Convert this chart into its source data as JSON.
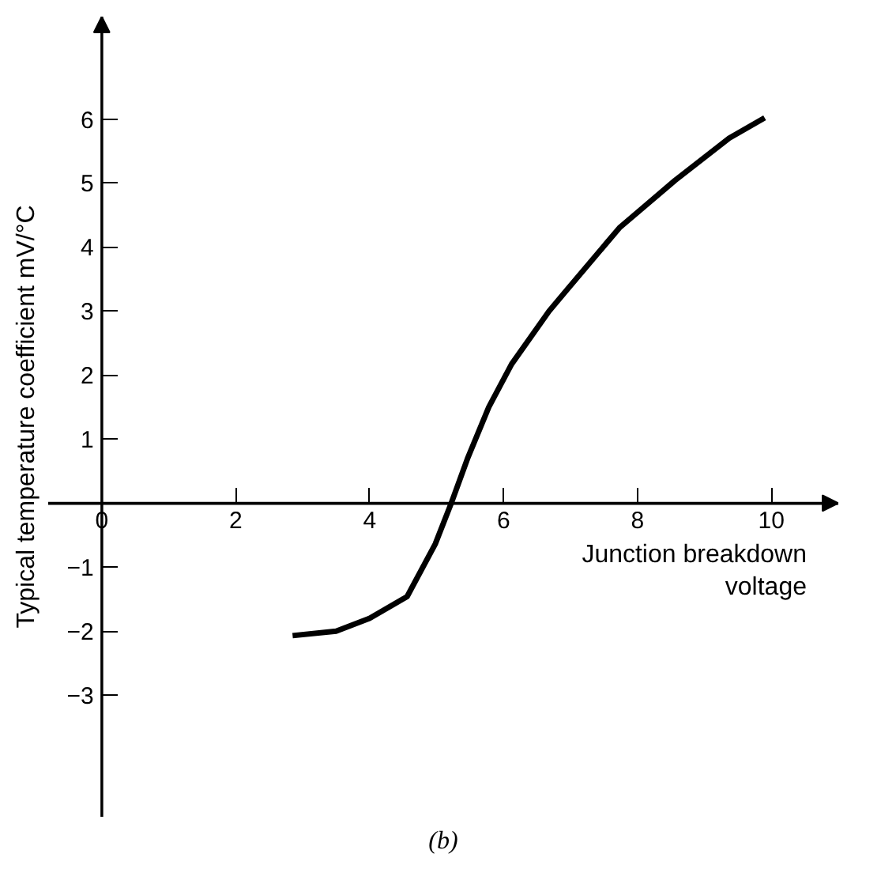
{
  "chart_data": {
    "type": "line",
    "xlabel": "Junction breakdown\nvoltage",
    "ylabel": "Typical temperature coefficient mV/°C",
    "annotations": [
      "(b)"
    ],
    "x": [
      2.85,
      3.5,
      4.0,
      4.56,
      4.98,
      5.22,
      5.46,
      5.78,
      6.12,
      6.68,
      6.93,
      7.73,
      8.56,
      9.37,
      9.9
    ],
    "series": [
      {
        "color": "#000000",
        "values": [
          -2.07,
          -2.0,
          -1.8,
          -1.46,
          -0.64,
          0,
          0.69,
          1.5,
          2.17,
          3.0,
          3.31,
          4.3,
          5.04,
          5.7,
          6.02
        ]
      }
    ],
    "xlim": [
      -0.8,
      11
    ],
    "ylim": [
      -4.9,
      7.6
    ],
    "xticks": [
      0,
      2,
      4,
      6,
      8,
      10
    ],
    "yticks": [
      -3,
      -2,
      -1,
      1,
      2,
      3,
      4,
      5,
      6
    ],
    "grid": false,
    "marker": "none",
    "line_style": "solid"
  }
}
